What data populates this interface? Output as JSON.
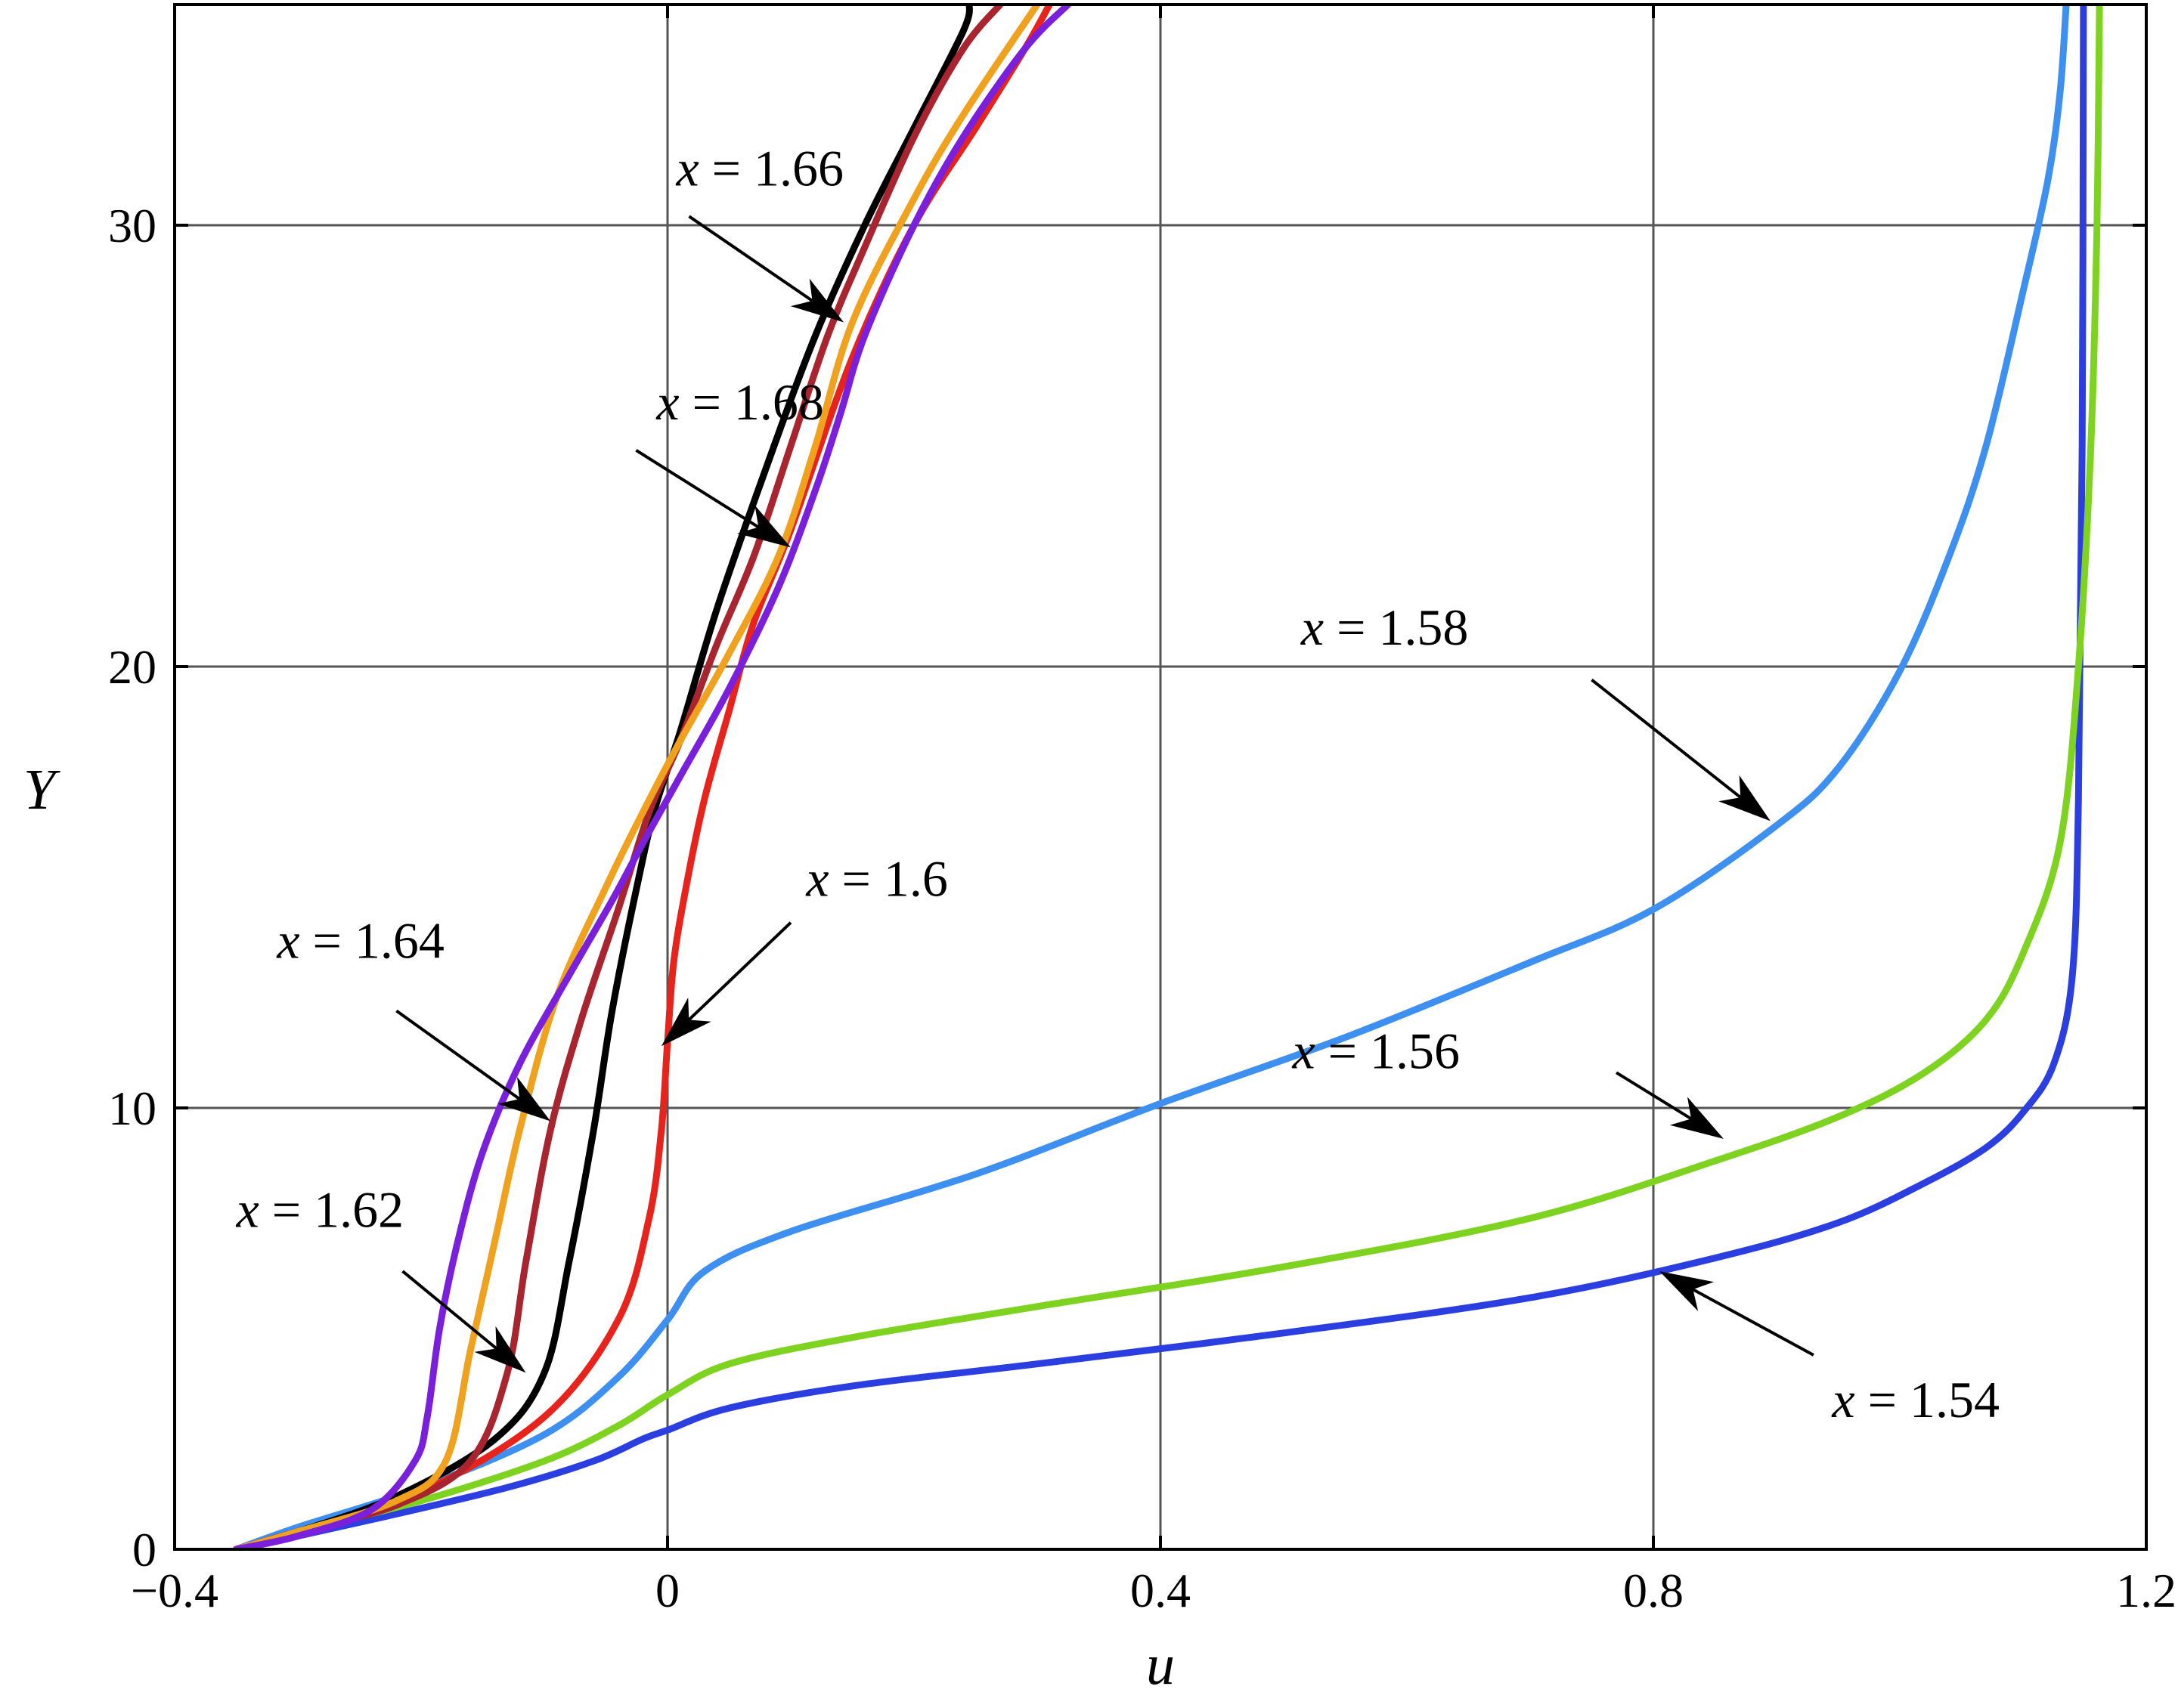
{
  "chart_data": {
    "type": "line",
    "title": "",
    "xlabel": "u",
    "ylabel": "Y",
    "xlim": [
      -0.4,
      1.2
    ],
    "ylim": [
      0,
      35
    ],
    "xticks": [
      -0.4,
      0,
      0.4,
      0.8,
      1.2
    ],
    "xtick_labels": [
      "−0.4",
      "0",
      "0.4",
      "0.8",
      "1.2"
    ],
    "yticks": [
      0,
      10,
      20,
      30
    ],
    "ytick_labels": [
      "0",
      "10",
      "20",
      "30"
    ],
    "grid": true,
    "legend": "none",
    "series": [
      {
        "color": "#2b3fe0",
        "points": [
          [
            -0.35,
            0
          ],
          [
            -0.3,
            0.3
          ],
          [
            -0.22,
            0.8
          ],
          [
            -0.13,
            1.4
          ],
          [
            -0.06,
            2
          ],
          [
            -0.02,
            2.5
          ],
          [
            0,
            2.7
          ],
          [
            0.05,
            3.2
          ],
          [
            0.15,
            3.7
          ],
          [
            0.3,
            4.2
          ],
          [
            0.5,
            4.9
          ],
          [
            0.7,
            5.7
          ],
          [
            0.85,
            6.6
          ],
          [
            0.95,
            7.4
          ],
          [
            1.02,
            8.3
          ],
          [
            1.07,
            9.1
          ],
          [
            1.1,
            9.9
          ],
          [
            1.125,
            11
          ],
          [
            1.14,
            13
          ],
          [
            1.145,
            17
          ],
          [
            1.148,
            25
          ],
          [
            1.149,
            35
          ]
        ]
      },
      {
        "color": "#7ed321",
        "points": [
          [
            -0.35,
            0
          ],
          [
            -0.3,
            0.4
          ],
          [
            -0.2,
            1.1
          ],
          [
            -0.1,
            2
          ],
          [
            -0.04,
            2.8
          ],
          [
            0,
            3.5
          ],
          [
            0.05,
            4.2
          ],
          [
            0.15,
            4.8
          ],
          [
            0.3,
            5.5
          ],
          [
            0.5,
            6.4
          ],
          [
            0.7,
            7.5
          ],
          [
            0.85,
            8.8
          ],
          [
            0.95,
            9.8
          ],
          [
            1.02,
            10.8
          ],
          [
            1.07,
            12
          ],
          [
            1.1,
            13.5
          ],
          [
            1.13,
            16
          ],
          [
            1.145,
            20
          ],
          [
            1.155,
            25
          ],
          [
            1.16,
            30
          ],
          [
            1.162,
            35
          ]
        ]
      },
      {
        "color": "#3d8ff0",
        "points": [
          [
            -0.35,
            0
          ],
          [
            -0.3,
            0.5
          ],
          [
            -0.2,
            1.4
          ],
          [
            -0.1,
            2.6
          ],
          [
            -0.04,
            3.9
          ],
          [
            0,
            5.2
          ],
          [
            0.03,
            6.3
          ],
          [
            0.1,
            7.2
          ],
          [
            0.25,
            8.5
          ],
          [
            0.4,
            10.1
          ],
          [
            0.55,
            11.6
          ],
          [
            0.7,
            13.3
          ],
          [
            0.8,
            14.5
          ],
          [
            0.9,
            16.4
          ],
          [
            0.95,
            17.7
          ],
          [
            1.0,
            19.9
          ],
          [
            1.04,
            22.5
          ],
          [
            1.07,
            25
          ],
          [
            1.1,
            28.5
          ],
          [
            1.12,
            31
          ],
          [
            1.13,
            33
          ],
          [
            1.135,
            35
          ]
        ]
      },
      {
        "color": "#e8231c",
        "points": [
          [
            -0.35,
            0
          ],
          [
            -0.3,
            0.4
          ],
          [
            -0.2,
            1.3
          ],
          [
            -0.1,
            3
          ],
          [
            -0.04,
            5.2
          ],
          [
            -0.015,
            7.5
          ],
          [
            -0.005,
            9.5
          ],
          [
            0,
            11.5
          ],
          [
            0.005,
            13.3
          ],
          [
            0.015,
            15
          ],
          [
            0.03,
            17
          ],
          [
            0.05,
            19
          ],
          [
            0.07,
            21
          ],
          [
            0.1,
            23.1
          ],
          [
            0.15,
            27
          ],
          [
            0.2,
            30
          ],
          [
            0.25,
            32.2
          ],
          [
            0.29,
            34
          ],
          [
            0.31,
            35
          ]
        ]
      },
      {
        "color": "#000000",
        "points": [
          [
            -0.35,
            0
          ],
          [
            -0.3,
            0.4
          ],
          [
            -0.22,
            1.2
          ],
          [
            -0.14,
            2.5
          ],
          [
            -0.1,
            4
          ],
          [
            -0.08,
            6.5
          ],
          [
            -0.06,
            9.5
          ],
          [
            -0.045,
            12.2
          ],
          [
            -0.025,
            15
          ],
          [
            -0.01,
            16.8
          ],
          [
            0.01,
            18.5
          ],
          [
            0.04,
            21.3
          ],
          [
            0.08,
            24.5
          ],
          [
            0.12,
            27.5
          ],
          [
            0.16,
            30
          ],
          [
            0.2,
            32.2
          ],
          [
            0.24,
            34.4
          ],
          [
            0.245,
            35
          ]
        ]
      },
      {
        "color": "#a8242e",
        "points": [
          [
            -0.35,
            0
          ],
          [
            -0.3,
            0.4
          ],
          [
            -0.22,
            1
          ],
          [
            -0.16,
            2
          ],
          [
            -0.13,
            4
          ],
          [
            -0.115,
            6.5
          ],
          [
            -0.095,
            9.5
          ],
          [
            -0.07,
            12
          ],
          [
            -0.04,
            14.5
          ],
          [
            -0.015,
            16.7
          ],
          [
            0.01,
            18.3
          ],
          [
            0.04,
            20.5
          ],
          [
            0.07,
            22.5
          ],
          [
            0.1,
            25
          ],
          [
            0.13,
            27.5
          ],
          [
            0.16,
            29.5
          ],
          [
            0.2,
            32
          ],
          [
            0.24,
            34
          ],
          [
            0.27,
            35
          ]
        ]
      },
      {
        "color": "#f0a21e",
        "points": [
          [
            -0.35,
            0
          ],
          [
            -0.3,
            0.4
          ],
          [
            -0.22,
            1.1
          ],
          [
            -0.18,
            2
          ],
          [
            -0.16,
            4.5
          ],
          [
            -0.14,
            7
          ],
          [
            -0.12,
            9.5
          ],
          [
            -0.09,
            12.5
          ],
          [
            -0.05,
            15
          ],
          [
            -0.02,
            16.7
          ],
          [
            0.01,
            18.3
          ],
          [
            0.05,
            20.3
          ],
          [
            0.09,
            22.5
          ],
          [
            0.12,
            25
          ],
          [
            0.15,
            27.8
          ],
          [
            0.2,
            30.6
          ],
          [
            0.24,
            32.5
          ],
          [
            0.3,
            35
          ]
        ]
      },
      {
        "color": "#7a1fdb",
        "points": [
          [
            -0.35,
            0
          ],
          [
            -0.3,
            0.3
          ],
          [
            -0.24,
            0.9
          ],
          [
            -0.205,
            2
          ],
          [
            -0.195,
            3
          ],
          [
            -0.185,
            5
          ],
          [
            -0.17,
            7
          ],
          [
            -0.15,
            9
          ],
          [
            -0.12,
            11
          ],
          [
            -0.08,
            13
          ],
          [
            -0.045,
            14.7
          ],
          [
            -0.02,
            16
          ],
          [
            0.01,
            17.5
          ],
          [
            0.05,
            19.5
          ],
          [
            0.09,
            21.8
          ],
          [
            0.12,
            24
          ],
          [
            0.14,
            25.7
          ],
          [
            0.16,
            27.5
          ],
          [
            0.2,
            30
          ],
          [
            0.24,
            32
          ],
          [
            0.29,
            34
          ],
          [
            0.325,
            35
          ]
        ]
      }
    ],
    "annotations": [
      {
        "text": "x = 1.66",
        "label_x": 0.075,
        "label_y": 30.9,
        "tail": [
          0.0175,
          30.2
        ],
        "head": [
          0.143,
          27.8
        ]
      },
      {
        "text": "x = 1.68",
        "label_x": 0.059,
        "label_y": 25.6,
        "tail": [
          -0.0255,
          24.9
        ],
        "head": [
          0.1,
          22.7
        ]
      },
      {
        "text": "x = 1.58",
        "label_x": 0.582,
        "label_y": 20.5,
        "tail": [
          0.75,
          19.7
        ],
        "head": [
          0.895,
          16.5
        ]
      },
      {
        "text": "x = 1.6",
        "label_x": 0.17,
        "label_y": 14.8,
        "tail": [
          0.1,
          14.2
        ],
        "head": [
          -0.005,
          11.4
        ]
      },
      {
        "text": "x = 1.64",
        "label_x": -0.249,
        "label_y": 13.4,
        "tail": [
          -0.22,
          12.2
        ],
        "head": [
          -0.095,
          9.7
        ]
      },
      {
        "text": "x = 1.56",
        "label_x": 0.575,
        "label_y": 10.9,
        "tail": [
          0.77,
          10.8
        ],
        "head": [
          0.857,
          9.3
        ]
      },
      {
        "text": "x = 1.62",
        "label_x": -0.282,
        "label_y": 7.3,
        "tail": [
          -0.215,
          6.3
        ],
        "head": [
          -0.115,
          4.0
        ]
      },
      {
        "text": "x = 1.54",
        "label_x": 1.013,
        "label_y": 3.0,
        "tail": [
          0.93,
          4.4
        ],
        "head": [
          0.805,
          6.3
        ]
      }
    ]
  }
}
